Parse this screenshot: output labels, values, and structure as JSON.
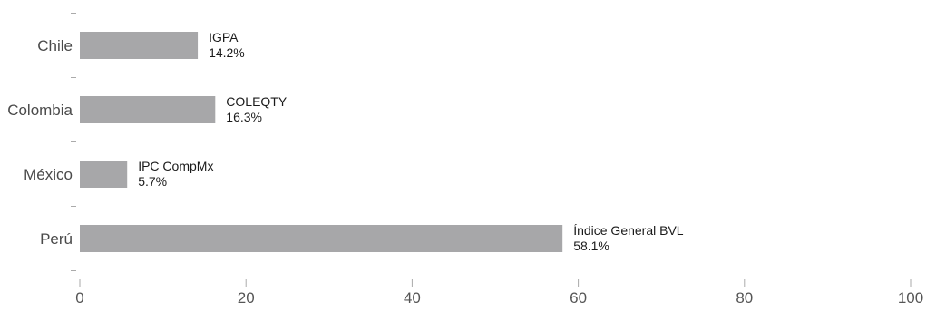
{
  "chart_data": {
    "type": "bar",
    "orientation": "horizontal",
    "title": "",
    "xlabel": "",
    "ylabel": "",
    "categories": [
      "Chile",
      "Colombia",
      "México",
      "Perú"
    ],
    "values": [
      14.2,
      16.3,
      5.7,
      58.1
    ],
    "bar_labels": [
      "IGPA",
      "COLEQTY",
      "IPC CompMx",
      "Índice General BVL"
    ],
    "value_labels": [
      "14.2%",
      "16.3%",
      "5.7%",
      "58.1%"
    ],
    "xlim": [
      0,
      100
    ],
    "xticks": [
      0,
      20,
      40,
      60,
      80,
      100
    ],
    "xtick_labels": [
      "0",
      "20",
      "40",
      "60",
      "80",
      "100"
    ],
    "grid": false,
    "legend": "none",
    "colors": {
      "bar": "#a7a7a9"
    }
  }
}
